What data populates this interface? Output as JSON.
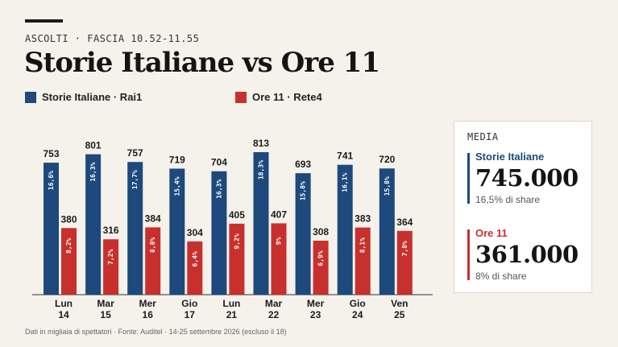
{
  "kicker": "ASCOLTI · FASCIA 10.52-11.55",
  "title": "Storie Italiane vs Ore 11",
  "legend": [
    {
      "label": "Storie Italiane · Rai1",
      "color": "#1d497c"
    },
    {
      "label": "Ore 11 · Rete4",
      "color": "#c8302d"
    }
  ],
  "chart_data": {
    "type": "bar",
    "categories": [
      [
        "Lun",
        "14"
      ],
      [
        "Mar",
        "15"
      ],
      [
        "Mer",
        "16"
      ],
      [
        "Gio",
        "17"
      ],
      [
        "Lun",
        "21"
      ],
      [
        "Mar",
        "22"
      ],
      [
        "Mer",
        "23"
      ],
      [
        "Gio",
        "24"
      ],
      [
        "Ven",
        "25"
      ]
    ],
    "ylim": [
      0,
      813
    ],
    "grid": false,
    "series": [
      {
        "name": "Storie Italiane · Rai1",
        "color": "#1d497c",
        "values": [
          753,
          801,
          757,
          719,
          704,
          813,
          693,
          741,
          720
        ],
        "shares": [
          "16,6%",
          "16,3%",
          "17,7%",
          "15,4%",
          "16,3%",
          "18,3%",
          "15,8%",
          "16,1%",
          "15,8%"
        ]
      },
      {
        "name": "Ore 11 · Rete4",
        "color": "#c8302d",
        "values": [
          380,
          316,
          384,
          304,
          405,
          407,
          308,
          383,
          364
        ],
        "shares": [
          "8,2%",
          "7,2%",
          "8,8%",
          "6,4%",
          "9,2%",
          "9%",
          "6,9%",
          "8,1%",
          "7,8%"
        ]
      }
    ]
  },
  "summary": {
    "title": "MEDIA",
    "items": [
      {
        "name": "Storie Italiane",
        "value": "745.000",
        "share": "16,5% di share",
        "color": "#1d497c"
      },
      {
        "name": "Ore 11",
        "value": "361.000",
        "share": "8% di share",
        "color": "#c8302d"
      }
    ]
  },
  "footnote": "Dati in migliaia di spettatori · Fonte: Auditel · 14-25 settembre 2026 (escluso il 18)"
}
